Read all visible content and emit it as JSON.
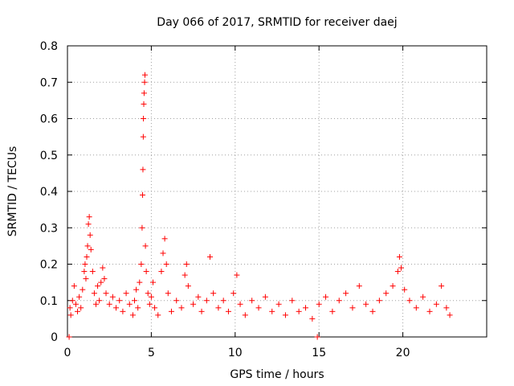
{
  "chart_data": {
    "type": "scatter",
    "title": "Day 066 of 2017, SRMTID for receiver daej",
    "xlabel": "GPS time / hours",
    "ylabel": "SRMTID / TECUs",
    "xlim": [
      0,
      25
    ],
    "ylim": [
      0,
      0.8
    ],
    "x_ticks": [
      0,
      5,
      10,
      15,
      20
    ],
    "y_ticks": [
      0,
      0.1,
      0.2,
      0.3,
      0.4,
      0.5,
      0.6,
      0.7,
      0.8
    ],
    "x_tick_labels": [
      "0",
      "5",
      "10",
      "15",
      "20"
    ],
    "y_tick_labels": [
      "0",
      "0.1",
      "0.2",
      "0.3",
      "0.4",
      "0.5",
      "0.6",
      "0.7",
      "0.8"
    ],
    "grid": true,
    "marker": "+",
    "series": [
      {
        "name": "SRMTID",
        "color": "#ff0000",
        "points": [
          [
            0.1,
            0.0
          ],
          [
            0.15,
            0.08
          ],
          [
            0.2,
            0.06
          ],
          [
            0.3,
            0.1
          ],
          [
            0.4,
            0.14
          ],
          [
            0.5,
            0.09
          ],
          [
            0.6,
            0.07
          ],
          [
            0.7,
            0.11
          ],
          [
            0.8,
            0.08
          ],
          [
            0.9,
            0.13
          ],
          [
            1.0,
            0.18
          ],
          [
            1.05,
            0.2
          ],
          [
            1.1,
            0.16
          ],
          [
            1.15,
            0.22
          ],
          [
            1.2,
            0.25
          ],
          [
            1.25,
            0.31
          ],
          [
            1.3,
            0.33
          ],
          [
            1.35,
            0.28
          ],
          [
            1.4,
            0.24
          ],
          [
            1.5,
            0.18
          ],
          [
            1.6,
            0.12
          ],
          [
            1.7,
            0.09
          ],
          [
            1.8,
            0.14
          ],
          [
            1.9,
            0.1
          ],
          [
            2.0,
            0.15
          ],
          [
            2.1,
            0.19
          ],
          [
            2.2,
            0.16
          ],
          [
            2.3,
            0.12
          ],
          [
            2.5,
            0.09
          ],
          [
            2.7,
            0.11
          ],
          [
            2.9,
            0.08
          ],
          [
            3.1,
            0.1
          ],
          [
            3.3,
            0.07
          ],
          [
            3.5,
            0.12
          ],
          [
            3.7,
            0.09
          ],
          [
            3.9,
            0.06
          ],
          [
            4.0,
            0.1
          ],
          [
            4.1,
            0.13
          ],
          [
            4.2,
            0.08
          ],
          [
            4.3,
            0.15
          ],
          [
            4.4,
            0.2
          ],
          [
            4.45,
            0.3
          ],
          [
            4.48,
            0.39
          ],
          [
            4.5,
            0.46
          ],
          [
            4.52,
            0.55
          ],
          [
            4.53,
            0.6
          ],
          [
            4.55,
            0.64
          ],
          [
            4.57,
            0.67
          ],
          [
            4.6,
            0.7
          ],
          [
            4.62,
            0.72
          ],
          [
            4.65,
            0.25
          ],
          [
            4.7,
            0.18
          ],
          [
            4.8,
            0.12
          ],
          [
            4.9,
            0.09
          ],
          [
            5.0,
            0.11
          ],
          [
            5.1,
            0.15
          ],
          [
            5.2,
            0.08
          ],
          [
            5.4,
            0.06
          ],
          [
            5.6,
            0.18
          ],
          [
            5.7,
            0.23
          ],
          [
            5.8,
            0.27
          ],
          [
            5.9,
            0.2
          ],
          [
            6.0,
            0.12
          ],
          [
            6.2,
            0.07
          ],
          [
            6.5,
            0.1
          ],
          [
            6.8,
            0.08
          ],
          [
            7.0,
            0.17
          ],
          [
            7.1,
            0.2
          ],
          [
            7.2,
            0.14
          ],
          [
            7.5,
            0.09
          ],
          [
            7.8,
            0.11
          ],
          [
            8.0,
            0.07
          ],
          [
            8.3,
            0.1
          ],
          [
            8.5,
            0.22
          ],
          [
            8.7,
            0.12
          ],
          [
            9.0,
            0.08
          ],
          [
            9.3,
            0.1
          ],
          [
            9.6,
            0.07
          ],
          [
            9.9,
            0.12
          ],
          [
            10.1,
            0.17
          ],
          [
            10.3,
            0.09
          ],
          [
            10.6,
            0.06
          ],
          [
            11.0,
            0.1
          ],
          [
            11.4,
            0.08
          ],
          [
            11.8,
            0.11
          ],
          [
            12.2,
            0.07
          ],
          [
            12.6,
            0.09
          ],
          [
            13.0,
            0.06
          ],
          [
            13.4,
            0.1
          ],
          [
            13.8,
            0.07
          ],
          [
            14.2,
            0.08
          ],
          [
            14.6,
            0.05
          ],
          [
            14.9,
            0.0
          ],
          [
            15.0,
            0.09
          ],
          [
            15.4,
            0.11
          ],
          [
            15.8,
            0.07
          ],
          [
            16.2,
            0.1
          ],
          [
            16.6,
            0.12
          ],
          [
            17.0,
            0.08
          ],
          [
            17.4,
            0.14
          ],
          [
            17.8,
            0.09
          ],
          [
            18.2,
            0.07
          ],
          [
            18.6,
            0.1
          ],
          [
            19.0,
            0.12
          ],
          [
            19.4,
            0.14
          ],
          [
            19.7,
            0.18
          ],
          [
            19.8,
            0.22
          ],
          [
            19.9,
            0.19
          ],
          [
            20.1,
            0.13
          ],
          [
            20.4,
            0.1
          ],
          [
            20.8,
            0.08
          ],
          [
            21.2,
            0.11
          ],
          [
            21.6,
            0.07
          ],
          [
            22.0,
            0.09
          ],
          [
            22.3,
            0.14
          ],
          [
            22.6,
            0.08
          ],
          [
            22.8,
            0.06
          ]
        ]
      }
    ]
  }
}
